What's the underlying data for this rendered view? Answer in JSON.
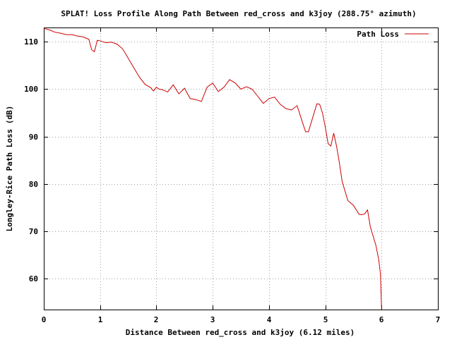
{
  "chart_data": {
    "type": "line",
    "title": "SPLAT! Loss Profile Along Path Between red_cross and k3joy (288.75° azimuth)",
    "xlabel": "Distance Between red_cross and k3joy (6.12 miles)",
    "ylabel": "Longley-Rice Path Loss (dB)",
    "xlim": [
      0,
      7
    ],
    "ylim": [
      53.5,
      113
    ],
    "xticks": [
      "0",
      "1",
      "2",
      "3",
      "4",
      "5",
      "6",
      "7"
    ],
    "yticks": [
      "60",
      "70",
      "80",
      "90",
      "100",
      "110"
    ],
    "grid": true,
    "legend_position": "top-right",
    "colors": {
      "series": "#cc0000",
      "grid": "#a0a0a0",
      "axis": "#000000"
    },
    "series": [
      {
        "name": "Path Loss",
        "x": [
          0,
          0.1,
          0.2,
          0.3,
          0.4,
          0.5,
          0.6,
          0.7,
          0.8,
          0.85,
          0.9,
          0.95,
          1.0,
          1.05,
          1.1,
          1.2,
          1.3,
          1.4,
          1.5,
          1.6,
          1.7,
          1.8,
          1.9,
          1.95,
          2.0,
          2.05,
          2.1,
          2.2,
          2.3,
          2.4,
          2.5,
          2.6,
          2.7,
          2.8,
          2.9,
          3.0,
          3.1,
          3.2,
          3.3,
          3.4,
          3.5,
          3.6,
          3.7,
          3.8,
          3.9,
          4.0,
          4.1,
          4.2,
          4.3,
          4.4,
          4.5,
          4.6,
          4.65,
          4.7,
          4.8,
          4.85,
          4.9,
          4.95,
          5.0,
          5.05,
          5.1,
          5.15,
          5.2,
          5.25,
          5.3,
          5.4,
          5.5,
          5.6,
          5.65,
          5.7,
          5.75,
          5.8,
          5.9,
          5.95,
          5.98,
          6.0
        ],
        "values": [
          112.8,
          112.5,
          112.0,
          111.8,
          111.5,
          111.5,
          111.2,
          111.0,
          110.5,
          108.3,
          107.9,
          110.3,
          110.2,
          110.0,
          109.8,
          109.9,
          109.5,
          108.5,
          106.5,
          104.5,
          102.5,
          101.0,
          100.3,
          99.6,
          100.4,
          100.0,
          99.9,
          99.4,
          100.9,
          99.0,
          100.2,
          98.0,
          97.8,
          97.4,
          100.4,
          101.3,
          99.5,
          100.4,
          102.0,
          101.3,
          100.0,
          100.5,
          100.0,
          98.5,
          97.0,
          98.0,
          98.3,
          96.8,
          95.9,
          95.6,
          96.5,
          92.8,
          91.0,
          91.0,
          94.9,
          96.9,
          96.8,
          95.0,
          92.0,
          88.5,
          88.0,
          90.7,
          88.0,
          84.5,
          80.5,
          76.5,
          75.5,
          73.6,
          73.5,
          73.7,
          74.5,
          71.0,
          67.0,
          64.0,
          61.0,
          53.5
        ]
      }
    ]
  }
}
